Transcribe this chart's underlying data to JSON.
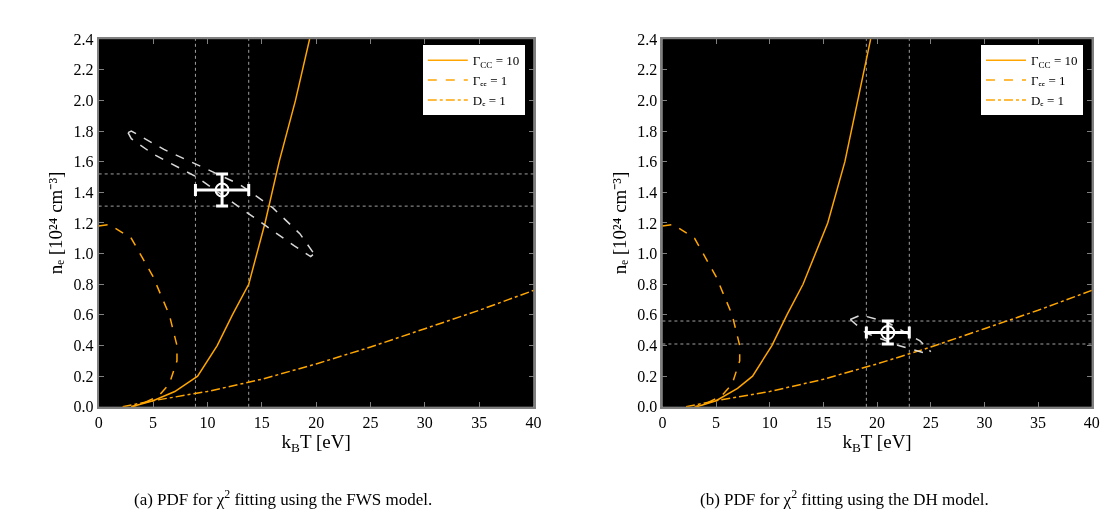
{
  "chart_data": [
    {
      "type": "line",
      "xlabel": "k$_{B}$T [eV]",
      "ylabel": "nₑ [10²⁴ cm⁻³]",
      "xlim": [
        0,
        40
      ],
      "ylim": [
        0,
        2.4
      ],
      "xticks": [
        0,
        5,
        10,
        15,
        20,
        25,
        30,
        35,
        40
      ],
      "yticks": [
        {
          "value": 0,
          "label": "0.0"
        },
        0.2,
        0.4,
        0.6,
        0.8,
        {
          "value": 1,
          "label": "1.0"
        },
        1.2,
        1.4,
        1.6,
        1.8,
        {
          "value": 2,
          "label": "2.0"
        },
        2.2,
        2.4
      ],
      "grid": false,
      "legend": "top right",
      "annotations": [
        "(a) PDF for χ$^{2}$ fitting using the FWS model."
      ],
      "ref_lines": [
        {
          "axis": "x",
          "value": 8.9,
          "color": "#a0a0a0",
          "line_style": "dotted"
        },
        {
          "axis": "x",
          "value": 13.8,
          "color": "#a0a0a0",
          "line_style": "dotted"
        },
        {
          "axis": "y",
          "value": 1.31,
          "color": "#a0a0a0",
          "line_style": "dotted"
        },
        {
          "axis": "y",
          "value": 1.52,
          "color": "#a0a0a0",
          "line_style": "dotted"
        }
      ],
      "series": [
        {
          "name": "Γ$_{CC}$ = 10",
          "color": "#ffa500",
          "line_style": "solid",
          "x": [
            3,
            5,
            7,
            9.1,
            10.9,
            12.3,
            13.8,
            15.3,
            16.6,
            18.1,
            19.4
          ],
          "values": [
            0,
            0.04,
            0.1,
            0.2,
            0.4,
            0.6,
            0.8,
            1.2,
            1.6,
            2.0,
            2.4
          ]
        },
        {
          "name": "Γₑₑ = 1",
          "color": "#ffa500",
          "line_style": "dashed",
          "x": [
            0,
            1,
            3,
            5,
            6.5,
            7.2,
            7.2,
            6.5,
            5.5,
            4,
            3
          ],
          "values": [
            1.18,
            1.19,
            1.1,
            0.85,
            0.6,
            0.4,
            0.3,
            0.15,
            0.07,
            0.02,
            0
          ]
        },
        {
          "name": "Dₑ = 1",
          "color": "#ffa500",
          "line_style": "dashdot",
          "x": [
            2.2,
            5,
            10,
            15,
            20,
            25,
            30,
            35,
            40
          ],
          "values": [
            0,
            0.04,
            0.1,
            0.18,
            0.28,
            0.39,
            0.51,
            0.63,
            0.76
          ]
        },
        {
          "color": "#d8d8d8",
          "line_style": "dashed",
          "x": [
            2.7,
            3,
            6,
            10,
            13,
            16,
            18.5,
            19.8
          ],
          "values": [
            1.79,
            1.8,
            1.68,
            1.55,
            1.45,
            1.3,
            1.13,
            1.0
          ]
        },
        {
          "color": "#d8d8d8",
          "line_style": "dashed",
          "x": [
            2.7,
            3,
            5,
            9,
            12,
            15,
            18,
            19.5,
            19.8
          ],
          "values": [
            1.79,
            1.75,
            1.65,
            1.5,
            1.35,
            1.2,
            1.05,
            0.98,
            1.0
          ]
        },
        {
          "type": "scatter",
          "color": "#ffffff",
          "marker": "circle",
          "x": [
            11.35
          ],
          "values": [
            1.415
          ],
          "errors": [
            0.105
          ],
          "xerrors": [
            2.45
          ]
        }
      ]
    },
    {
      "type": "line",
      "xlabel": "k$_{B}$T [eV]",
      "ylabel": "nₑ [10²⁴ cm⁻³]",
      "xlim": [
        0,
        40
      ],
      "ylim": [
        0,
        2.4
      ],
      "xticks": [
        0,
        5,
        10,
        15,
        20,
        25,
        30,
        35,
        40
      ],
      "yticks": [
        {
          "value": 0,
          "label": "0.0"
        },
        0.2,
        0.4,
        0.6,
        0.8,
        {
          "value": 1,
          "label": "1.0"
        },
        1.2,
        1.4,
        1.6,
        1.8,
        {
          "value": 2,
          "label": "2.0"
        },
        2.2,
        2.4
      ],
      "grid": false,
      "legend": "top right",
      "annotations": [
        "(b) PDF for χ$^{2}$ fitting using the DH model."
      ],
      "ref_lines": [
        {
          "axis": "x",
          "value": 19,
          "color": "#a0a0a0",
          "line_style": "dotted"
        },
        {
          "axis": "x",
          "value": 23,
          "color": "#a0a0a0",
          "line_style": "dotted"
        },
        {
          "axis": "y",
          "value": 0.41,
          "color": "#a0a0a0",
          "line_style": "dotted"
        },
        {
          "axis": "y",
          "value": 0.56,
          "color": "#a0a0a0",
          "line_style": "dotted"
        }
      ],
      "series": [
        {
          "name": "Γ$_{CC}$ = 10",
          "color": "#ffa500",
          "line_style": "solid",
          "x": [
            3.2,
            5,
            7,
            8.4,
            10.2,
            11.6,
            13.1,
            15.4,
            17.0,
            18.2,
            19.4
          ],
          "values": [
            0,
            0.04,
            0.12,
            0.2,
            0.4,
            0.6,
            0.8,
            1.2,
            1.6,
            2.0,
            2.4
          ]
        },
        {
          "name": "Γₑₑ = 1",
          "color": "#ffa500",
          "line_style": "dashed",
          "x": [
            0,
            1,
            3,
            5,
            6.5,
            7.2,
            7.2,
            6.5,
            5.5,
            4,
            3
          ],
          "values": [
            1.18,
            1.19,
            1.1,
            0.85,
            0.6,
            0.4,
            0.3,
            0.15,
            0.07,
            0.02,
            0
          ]
        },
        {
          "name": "Dₑ = 1",
          "color": "#ffa500",
          "line_style": "dashdot",
          "x": [
            2.2,
            5,
            10,
            15,
            20,
            25,
            30,
            35,
            40
          ],
          "values": [
            0,
            0.04,
            0.1,
            0.18,
            0.28,
            0.39,
            0.51,
            0.63,
            0.76
          ]
        },
        {
          "color": "#d8d8d8",
          "line_style": "dashed",
          "x": [
            17.5,
            18.5,
            21,
            24,
            25
          ],
          "values": [
            0.57,
            0.6,
            0.55,
            0.43,
            0.36
          ]
        },
        {
          "color": "#d8d8d8",
          "line_style": "dashed",
          "x": [
            17.5,
            19,
            22,
            24.5,
            25
          ],
          "values": [
            0.57,
            0.48,
            0.4,
            0.35,
            0.36
          ]
        },
        {
          "type": "scatter",
          "color": "#ffffff",
          "marker": "circle",
          "x": [
            21
          ],
          "values": [
            0.485
          ],
          "errors": [
            0.075
          ],
          "xerrors": [
            2
          ]
        }
      ]
    }
  ]
}
